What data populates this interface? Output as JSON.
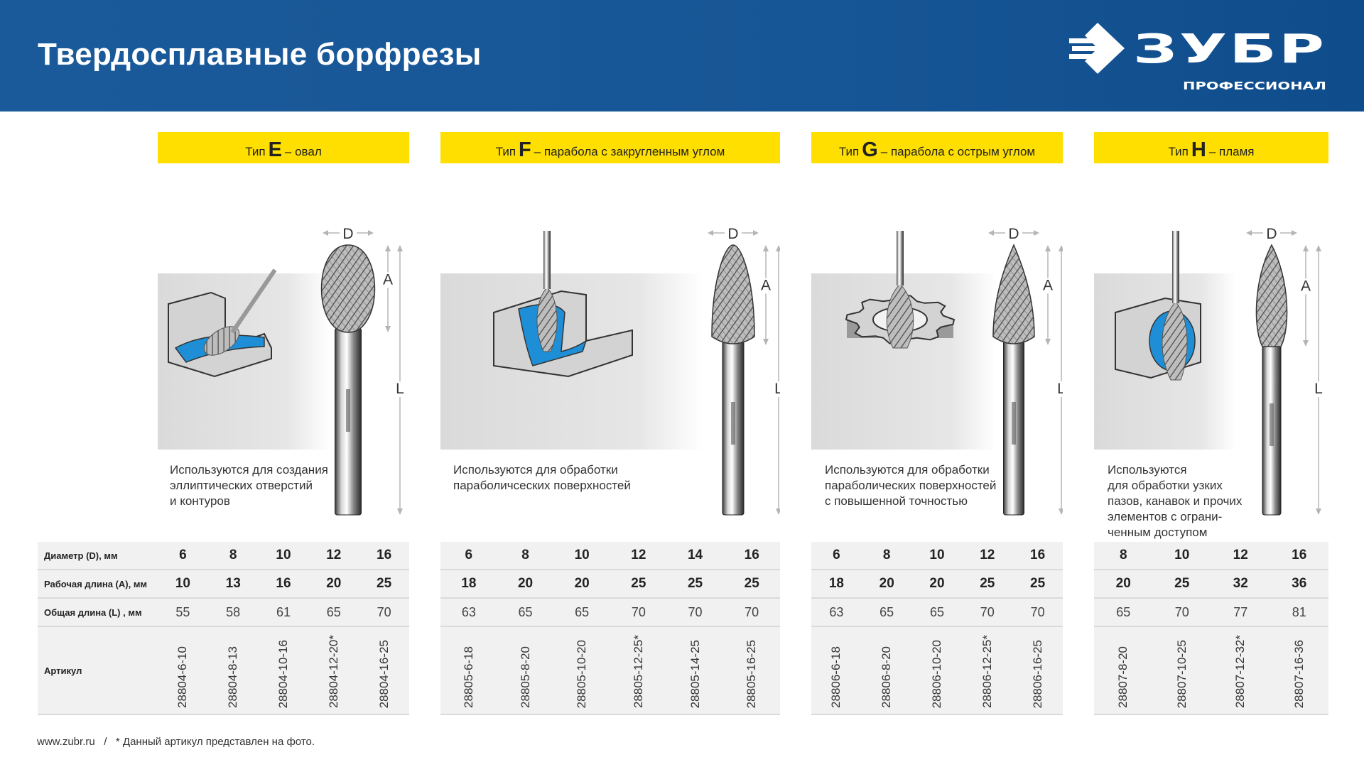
{
  "header": {
    "title": "Твердосплавные борфрезы",
    "logo_text": "ЗУБР",
    "logo_subtitle": "ПРОФЕССИОНАЛ"
  },
  "colors": {
    "header_blue": "#175696",
    "type_bar_yellow": "#ffdf00",
    "accent_blue": "#1e8fd6"
  },
  "table_labels": {
    "diameter": "Диаметр (D), мм",
    "work_length": "Рабочая длина (A), мм",
    "total_length": "Общая длина (L) , мм",
    "article": "Артикул"
  },
  "dimension_labels": {
    "d": "D",
    "a": "A",
    "l": "L"
  },
  "sections": [
    {
      "type_prefix": "Тип",
      "type_letter": "E",
      "type_name": "– овал",
      "description": "Используются для создания\nэллиптических отверстий\nи контуров",
      "diameter": [
        "6",
        "8",
        "10",
        "12",
        "16"
      ],
      "work_length": [
        "10",
        "13",
        "16",
        "20",
        "25"
      ],
      "total_length": [
        "55",
        "58",
        "61",
        "65",
        "70"
      ],
      "article": [
        "28804-6-10",
        "28804-8-13",
        "28804-10-16",
        "28804-12-20*",
        "28804-16-25"
      ]
    },
    {
      "type_prefix": "Тип",
      "type_letter": "F",
      "type_name": "– парабола с закругленным углом",
      "description": "Используются для обработки\nпараболичсеских поверхностей",
      "diameter": [
        "6",
        "8",
        "10",
        "12",
        "14",
        "16"
      ],
      "work_length": [
        "18",
        "20",
        "20",
        "25",
        "25",
        "25"
      ],
      "total_length": [
        "63",
        "65",
        "65",
        "70",
        "70",
        "70"
      ],
      "article": [
        "28805-6-18",
        "28805-8-20",
        "28805-10-20",
        "28805-12-25*",
        "28805-14-25",
        "28805-16-25"
      ]
    },
    {
      "type_prefix": "Тип",
      "type_letter": "G",
      "type_name": "– парабола с острым углом",
      "description": "Используются для обработки\nпараболических поверхностей\nс повышенной точностью",
      "diameter": [
        "6",
        "8",
        "10",
        "12",
        "16"
      ],
      "work_length": [
        "18",
        "20",
        "20",
        "25",
        "25"
      ],
      "total_length": [
        "63",
        "65",
        "65",
        "70",
        "70"
      ],
      "article": [
        "28806-6-18",
        "28806-8-20",
        "28806-10-20",
        "28806-12-25*",
        "28806-16-25"
      ]
    },
    {
      "type_prefix": "Тип",
      "type_letter": "H",
      "type_name": "– пламя",
      "description": "Используются\nдля обработки узких\nпазов, канавок и прочих\nэлементов с ограни-\nченным доступом",
      "diameter": [
        "8",
        "10",
        "12",
        "16"
      ],
      "work_length": [
        "20",
        "25",
        "32",
        "36"
      ],
      "total_length": [
        "65",
        "70",
        "77",
        "81"
      ],
      "article": [
        "28807-8-20",
        "28807-10-25",
        "28807-12-32*",
        "28807-16-36"
      ]
    }
  ],
  "footer": {
    "website": "www.zubr.ru",
    "separator": "/",
    "note": "* Данный артикул представлен на фото."
  }
}
